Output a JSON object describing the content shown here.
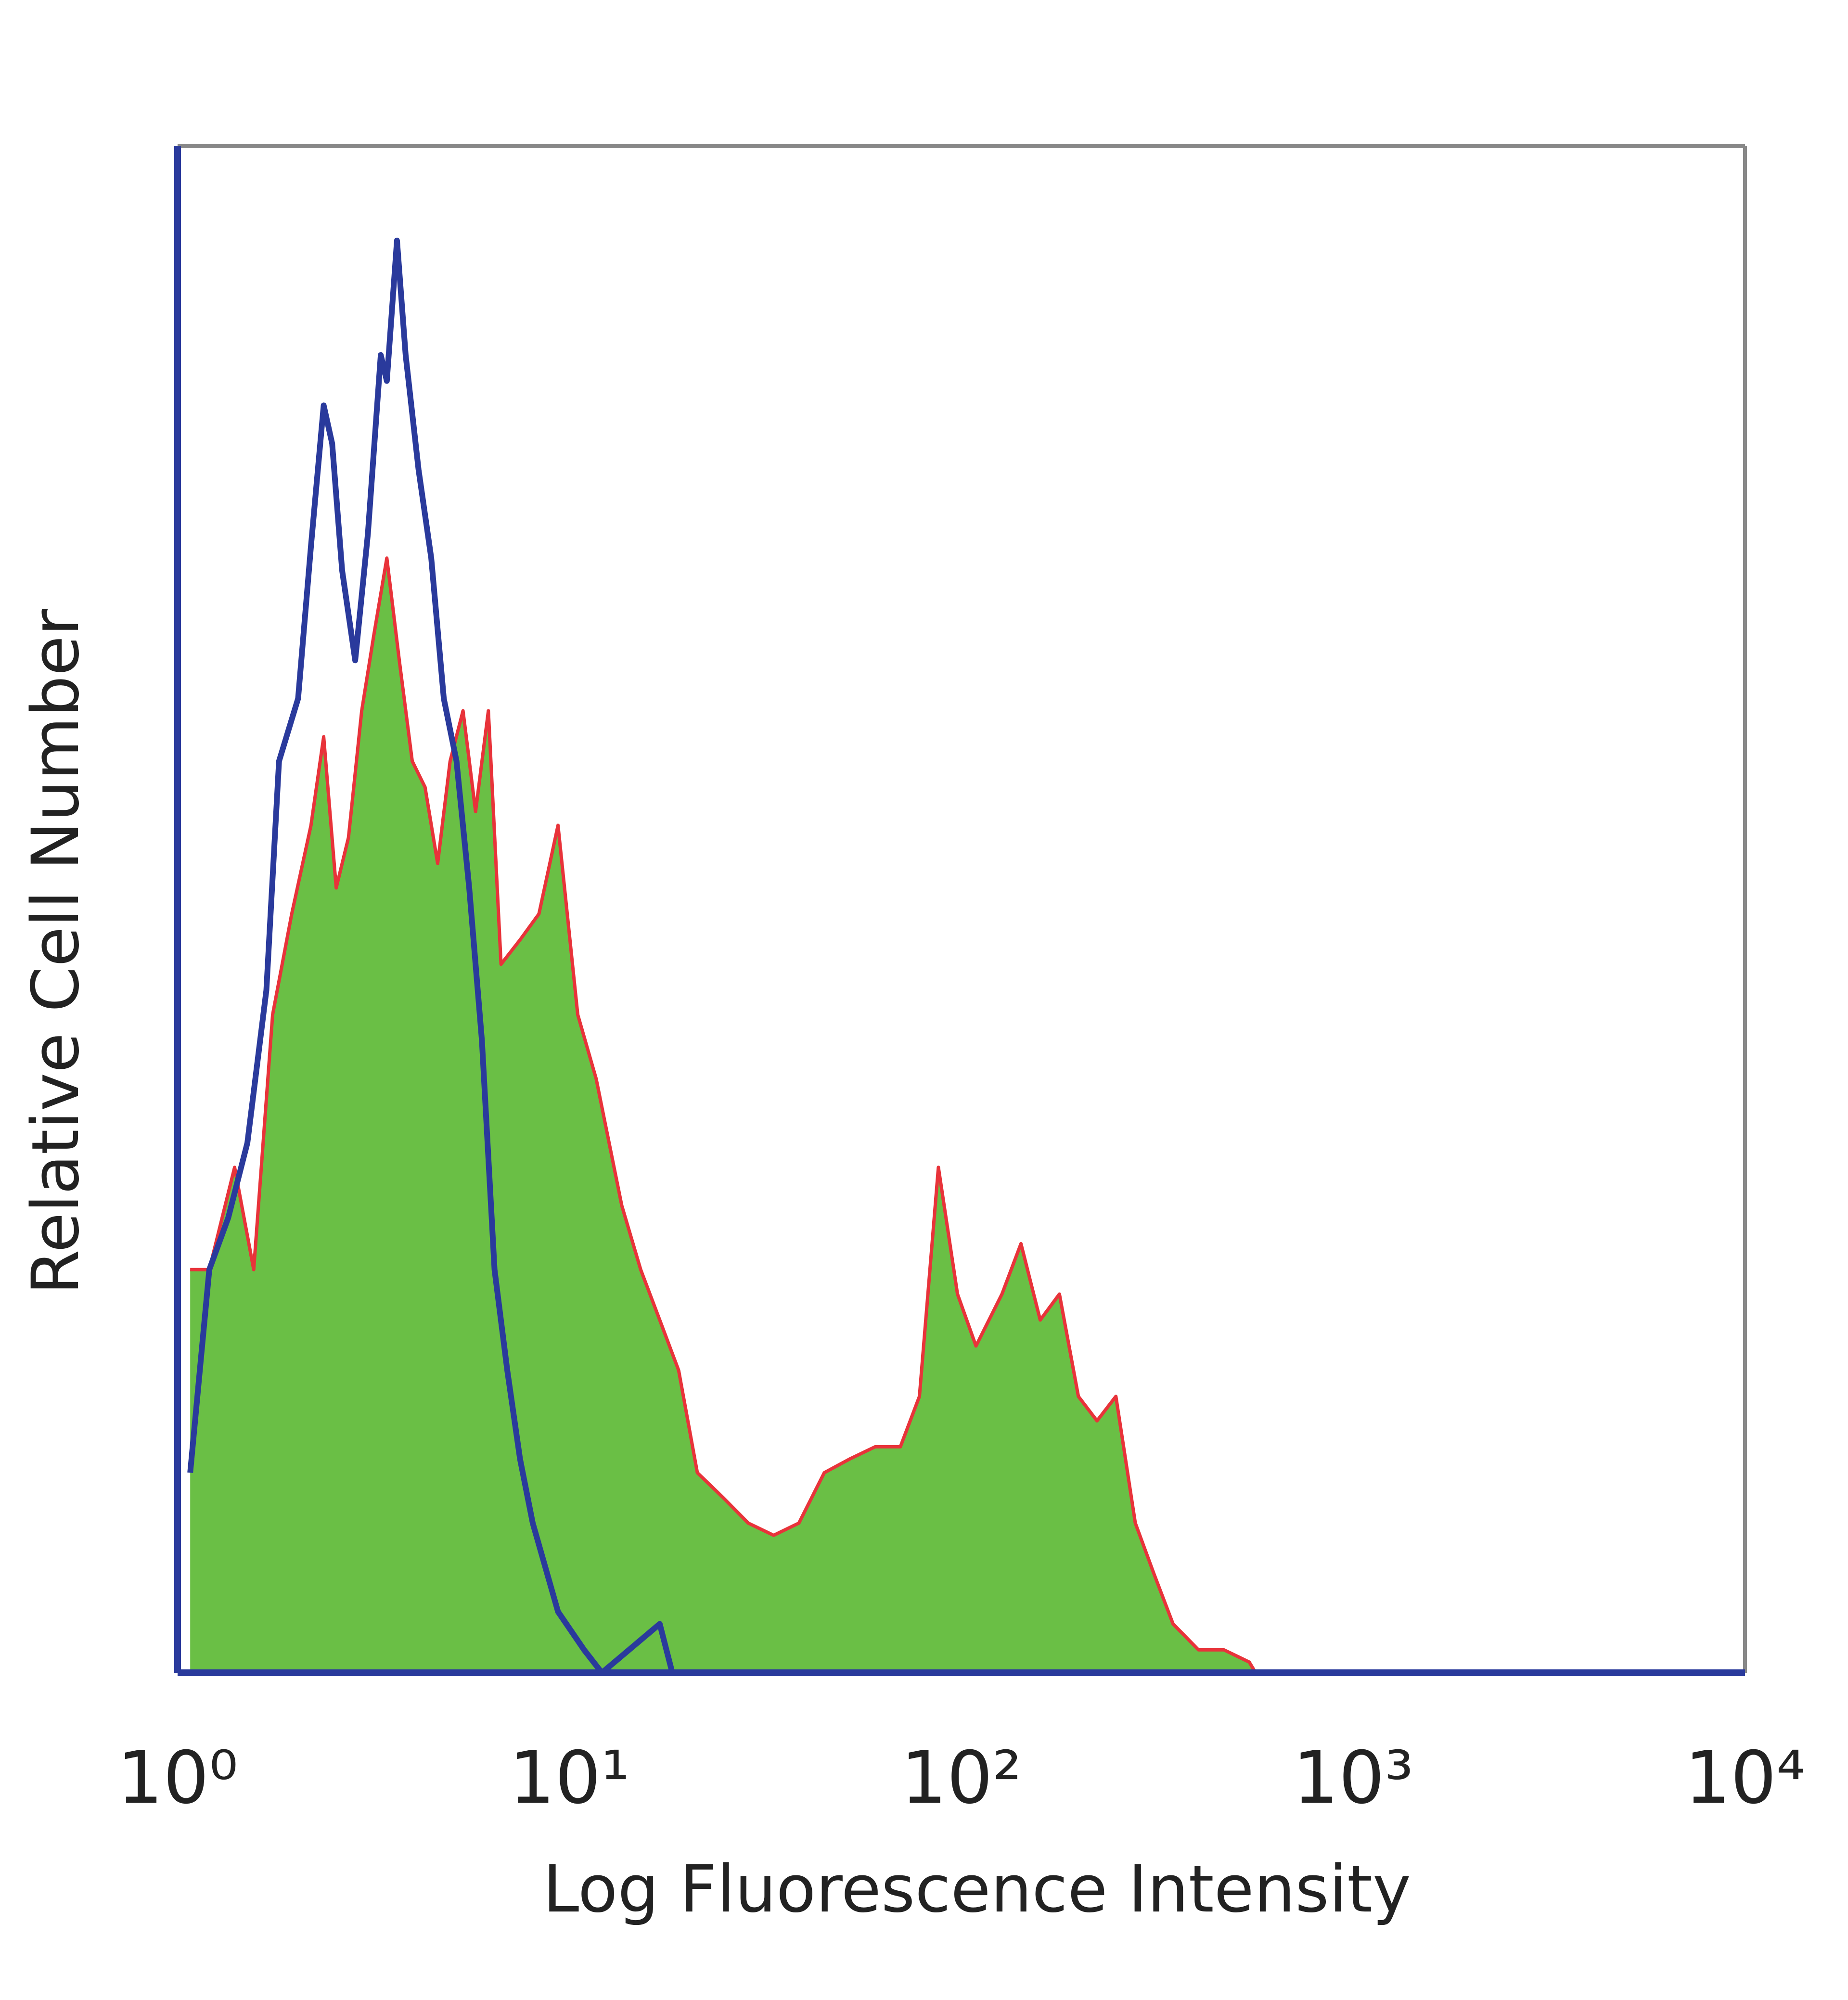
{
  "chart_data": {
    "type": "histogram-overlay",
    "xlabel": "Log Fluorescence Intensity",
    "ylabel": "Relative Cell Number",
    "xscale": "log",
    "xlim": [
      1,
      10000
    ],
    "xticks": [
      {
        "value": 1,
        "label": "10⁰"
      },
      {
        "value": 10,
        "label": "10¹"
      },
      {
        "value": 100,
        "label": "10²"
      },
      {
        "value": 1000,
        "label": "10³"
      },
      {
        "value": 10000,
        "label": "10⁴"
      }
    ],
    "ylim": [
      0,
      100
    ],
    "series": [
      {
        "style": "area",
        "color": "#6abf45",
        "edge_color": "#e8333a",
        "x": [
          1.077,
          1.205,
          1.398,
          1.564,
          1.748,
          1.956,
          2.19,
          2.36,
          2.54,
          2.73,
          2.95,
          3.17,
          3.42,
          3.68,
          3.97,
          4.28,
          4.61,
          4.96,
          5.35,
          5.76,
          6.21,
          6.69,
          7.48,
          8.36,
          9.35,
          10.5,
          11.7,
          13.6,
          15.2,
          17.0,
          19.0,
          21.2,
          24.6,
          28.6,
          33.2,
          38.5,
          44.7,
          51.9,
          60.3,
          69.9,
          78.2,
          87.4,
          97.8,
          109,
          127,
          142,
          159,
          178,
          199,
          222,
          248,
          278,
          310,
          347,
          403,
          468,
          543,
          564
        ],
        "values": [
          26.4,
          26.4,
          33.1,
          26.4,
          43.1,
          49.7,
          55.5,
          61.3,
          51.4,
          54.7,
          63.0,
          68.0,
          73.0,
          66.3,
          59.7,
          58.0,
          53.0,
          59.7,
          63.0,
          56.4,
          63.0,
          46.4,
          48.0,
          49.7,
          55.5,
          43.1,
          38.9,
          30.6,
          26.4,
          23.1,
          19.8,
          13.1,
          11.5,
          9.8,
          9.0,
          9.8,
          13.1,
          14.0,
          14.8,
          14.8,
          18.1,
          33.1,
          24.8,
          21.4,
          24.8,
          28.1,
          23.1,
          24.8,
          18.1,
          16.5,
          18.1,
          9.8,
          6.5,
          3.2,
          1.5,
          1.5,
          0.7,
          0
        ]
      },
      {
        "style": "line",
        "color": "#2a3a9c",
        "x": [
          1.077,
          1.205,
          1.347,
          1.507,
          1.685,
          1.815,
          2.03,
          2.19,
          2.36,
          2.48,
          2.63,
          2.84,
          3.06,
          3.3,
          3.42,
          3.63,
          3.82,
          4.12,
          4.44,
          4.78,
          5.15,
          5.55,
          5.98,
          6.44,
          6.94,
          7.48,
          8.06,
          9.35,
          10.9,
          12.1,
          17.0,
          18.3
        ],
        "values": [
          13.1,
          26.4,
          29.8,
          34.7,
          44.7,
          59.7,
          63.8,
          73.8,
          83.0,
          80.5,
          72.2,
          66.3,
          74.6,
          86.3,
          84.6,
          93.8,
          86.3,
          78.8,
          73.0,
          63.8,
          59.7,
          51.4,
          41.4,
          26.4,
          19.8,
          14.0,
          9.8,
          4.0,
          1.5,
          0,
          3.2,
          0
        ]
      }
    ],
    "frame_color": "#888888",
    "axis_color": "#2a3a9c"
  }
}
